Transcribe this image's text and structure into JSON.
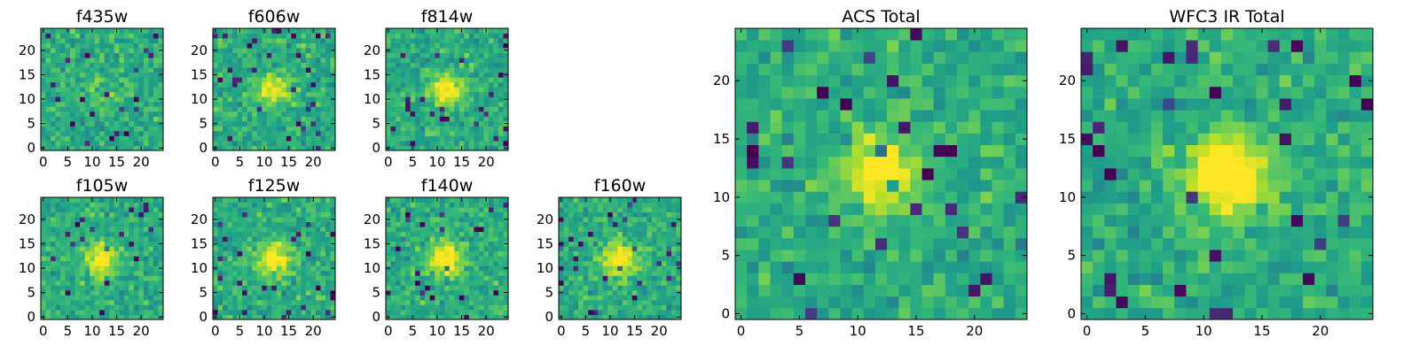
{
  "chart_data": [
    {
      "type": "heatmap",
      "title": "f435w",
      "grid_size": 25,
      "colormap": "viridis",
      "xticks": [
        0,
        5,
        10,
        15,
        20
      ],
      "yticks": [
        0,
        5,
        10,
        15,
        20
      ],
      "xlim": [
        0,
        24
      ],
      "ylim": [
        0,
        24
      ],
      "source_center": [
        12,
        12
      ],
      "source_strength": 0.1,
      "noise_seed": 11
    },
    {
      "type": "heatmap",
      "title": "f606w",
      "grid_size": 25,
      "colormap": "viridis",
      "xticks": [
        0,
        5,
        10,
        15,
        20
      ],
      "yticks": [
        0,
        5,
        10,
        15,
        20
      ],
      "xlim": [
        0,
        24
      ],
      "ylim": [
        0,
        24
      ],
      "source_center": [
        12,
        12
      ],
      "source_strength": 0.4,
      "noise_seed": 23
    },
    {
      "type": "heatmap",
      "title": "f814w",
      "grid_size": 25,
      "colormap": "viridis",
      "xticks": [
        0,
        5,
        10,
        15,
        20
      ],
      "yticks": [
        0,
        5,
        10,
        15,
        20
      ],
      "xlim": [
        0,
        24
      ],
      "ylim": [
        0,
        24
      ],
      "source_center": [
        12,
        12
      ],
      "source_strength": 0.4,
      "noise_seed": 37
    },
    {
      "type": "heatmap",
      "title": "f105w",
      "grid_size": 25,
      "colormap": "viridis",
      "xticks": [
        0,
        5,
        10,
        15,
        20
      ],
      "yticks": [
        0,
        5,
        10,
        15,
        20
      ],
      "xlim": [
        0,
        24
      ],
      "ylim": [
        0,
        24
      ],
      "source_center": [
        12,
        12
      ],
      "source_strength": 0.45,
      "noise_seed": 41
    },
    {
      "type": "heatmap",
      "title": "f125w",
      "grid_size": 25,
      "colormap": "viridis",
      "xticks": [
        0,
        5,
        10,
        15,
        20
      ],
      "yticks": [
        0,
        5,
        10,
        15,
        20
      ],
      "xlim": [
        0,
        24
      ],
      "ylim": [
        0,
        24
      ],
      "source_center": [
        12,
        12
      ],
      "source_strength": 0.45,
      "noise_seed": 53
    },
    {
      "type": "heatmap",
      "title": "f140w",
      "grid_size": 25,
      "colormap": "viridis",
      "xticks": [
        0,
        5,
        10,
        15,
        20
      ],
      "yticks": [
        0,
        5,
        10,
        15,
        20
      ],
      "xlim": [
        0,
        24
      ],
      "ylim": [
        0,
        24
      ],
      "source_center": [
        12,
        12
      ],
      "source_strength": 0.5,
      "noise_seed": 67
    },
    {
      "type": "heatmap",
      "title": "f160w",
      "grid_size": 25,
      "colormap": "viridis",
      "xticks": [
        0,
        5,
        10,
        15,
        20
      ],
      "yticks": [
        0,
        5,
        10,
        15,
        20
      ],
      "xlim": [
        0,
        24
      ],
      "ylim": [
        0,
        24
      ],
      "source_center": [
        12,
        12
      ],
      "source_strength": 0.5,
      "noise_seed": 79
    },
    {
      "type": "heatmap",
      "title": "ACS Total",
      "grid_size": 25,
      "colormap": "viridis",
      "xticks": [
        0,
        5,
        10,
        15,
        20
      ],
      "yticks": [
        0,
        5,
        10,
        15,
        20
      ],
      "xlim": [
        0,
        24
      ],
      "ylim": [
        0,
        24
      ],
      "source_center": [
        12,
        12
      ],
      "source_strength": 0.5,
      "noise_seed": 97
    },
    {
      "type": "heatmap",
      "title": "WFC3 IR Total",
      "grid_size": 25,
      "colormap": "viridis",
      "xticks": [
        0,
        5,
        10,
        15,
        20
      ],
      "yticks": [
        0,
        5,
        10,
        15,
        20
      ],
      "xlim": [
        0,
        24
      ],
      "ylim": [
        0,
        24
      ],
      "source_center": [
        12,
        12
      ],
      "source_strength": 0.65,
      "noise_seed": 131
    }
  ]
}
